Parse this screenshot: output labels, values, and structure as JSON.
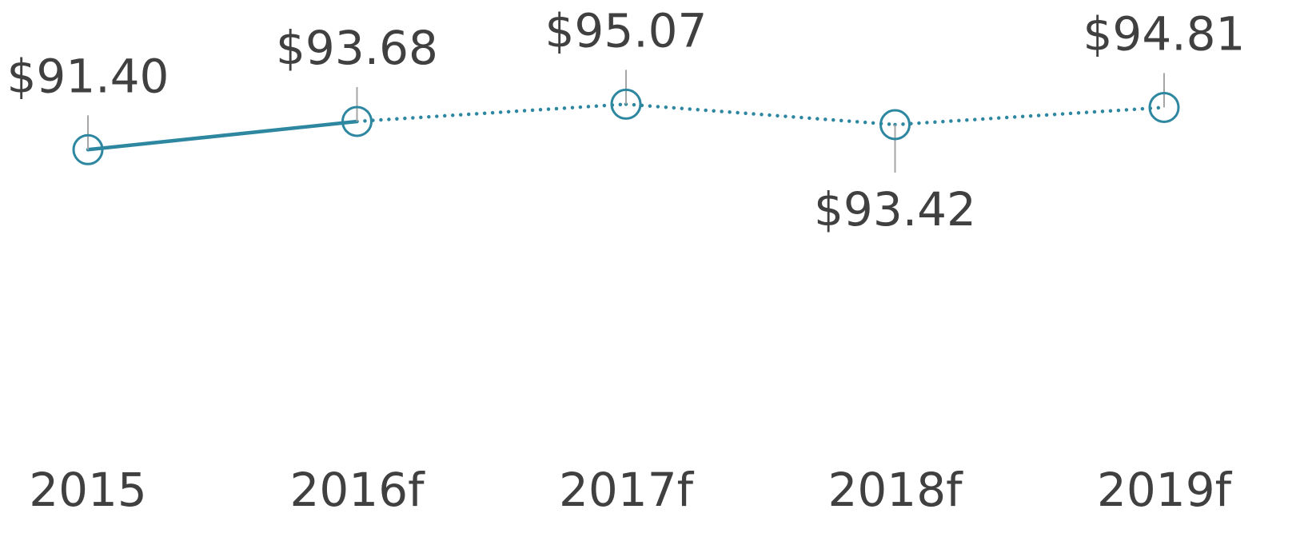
{
  "chart_data": {
    "type": "line",
    "categories": [
      "2015",
      "2016f",
      "2017f",
      "2018f",
      "2019f"
    ],
    "values": [
      91.4,
      93.68,
      95.07,
      93.42,
      94.81
    ],
    "value_labels": [
      "$91.40",
      "$93.68",
      "$95.07",
      "$93.42",
      "$94.81"
    ],
    "label_positions": [
      "above",
      "above",
      "above",
      "below",
      "above"
    ],
    "segment_styles": [
      "solid",
      "dotted",
      "dotted",
      "dotted"
    ],
    "color": "#2e87a0",
    "ylim": [
      80,
      100
    ]
  }
}
